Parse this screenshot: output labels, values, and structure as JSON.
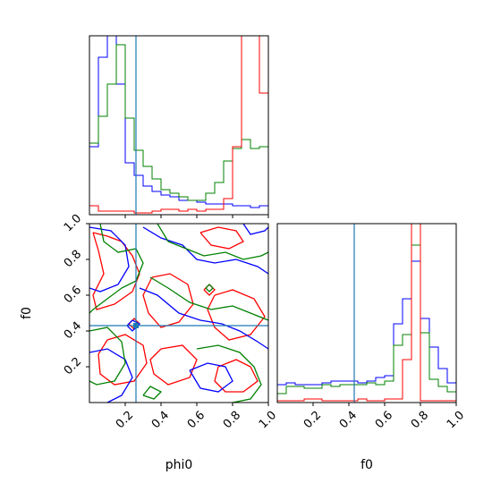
{
  "chart_data": {
    "type": "corner",
    "parameters": [
      "phi0",
      "f0"
    ],
    "truth": {
      "phi0": 0.26,
      "f0": 0.43
    },
    "xlabel_phi0": "phi0",
    "xlabel_f0": "f0",
    "ylabel_f0": "f0",
    "axis_range": [
      0.0,
      1.0
    ],
    "ticks": [
      0.2,
      0.4,
      0.6,
      0.8,
      1.0
    ],
    "tick_labels": [
      "0.2",
      "0.4",
      "0.6",
      "0.8",
      "1.0"
    ],
    "colors": {
      "blue": "#0000ff",
      "green": "#008000",
      "red": "#ff0000",
      "truth": "#1f77b4"
    },
    "hist_bin_width": 0.05,
    "hist_phi0": {
      "ymax": 1.0,
      "series": [
        {
          "color": "blue",
          "values": [
            0.38,
            0.88,
            1.05,
            0.73,
            0.29,
            0.22,
            0.16,
            0.13,
            0.11,
            0.1,
            0.08,
            0.08,
            0.07,
            0.06,
            0.06,
            0.06,
            0.05,
            0.05,
            0.04,
            0.05
          ]
        },
        {
          "color": "green",
          "values": [
            0.4,
            0.55,
            0.73,
            0.95,
            0.54,
            0.36,
            0.27,
            0.2,
            0.14,
            0.12,
            0.1,
            0.08,
            0.08,
            0.12,
            0.18,
            0.3,
            0.37,
            0.42,
            0.37,
            0.38
          ]
        },
        {
          "color": "red",
          "values": [
            0.05,
            0.02,
            0.02,
            0.02,
            0.02,
            0.01,
            0.01,
            0.02,
            0.03,
            0.03,
            0.02,
            0.03,
            0.02,
            0.03,
            0.03,
            0.09,
            0.38,
            1.06,
            1.02,
            0.68
          ]
        }
      ]
    },
    "hist_f0": {
      "ymax": 1.0,
      "series": [
        {
          "color": "blue",
          "values": [
            0.1,
            0.11,
            0.1,
            0.1,
            0.1,
            0.11,
            0.12,
            0.12,
            0.12,
            0.11,
            0.12,
            0.14,
            0.15,
            0.44,
            0.58,
            0.79,
            0.47,
            0.31,
            0.19,
            0.11
          ]
        },
        {
          "color": "green",
          "values": [
            0.05,
            0.09,
            0.09,
            0.08,
            0.08,
            0.1,
            0.09,
            0.1,
            0.1,
            0.1,
            0.11,
            0.1,
            0.12,
            0.32,
            0.38,
            0.88,
            0.39,
            0.13,
            0.09,
            0.06
          ]
        },
        {
          "color": "red",
          "values": [
            0.01,
            0.01,
            0.01,
            0.02,
            0.02,
            0.01,
            0.01,
            0.01,
            0.01,
            0.02,
            0.01,
            0.01,
            0.02,
            0.02,
            0.24,
            1.06,
            0.01,
            0.01,
            0.01,
            0.01
          ]
        }
      ]
    },
    "contours": [
      {
        "color": "red",
        "points": [
          [
            0.02,
            0.95
          ],
          [
            0.1,
            0.93
          ],
          [
            0.18,
            0.9
          ],
          [
            0.24,
            0.82
          ],
          [
            0.28,
            0.72
          ],
          [
            0.24,
            0.62
          ],
          [
            0.14,
            0.55
          ],
          [
            0.04,
            0.52
          ],
          [
            0.02,
            0.6
          ],
          [
            0.08,
            0.72
          ],
          [
            0.05,
            0.85
          ],
          [
            0.02,
            0.95
          ]
        ]
      },
      {
        "color": "red",
        "points": [
          [
            0.35,
            0.7
          ],
          [
            0.45,
            0.72
          ],
          [
            0.55,
            0.66
          ],
          [
            0.58,
            0.55
          ],
          [
            0.5,
            0.45
          ],
          [
            0.4,
            0.42
          ],
          [
            0.33,
            0.5
          ],
          [
            0.3,
            0.6
          ],
          [
            0.35,
            0.7
          ]
        ]
      },
      {
        "color": "red",
        "points": [
          [
            0.62,
            0.95
          ],
          [
            0.72,
            0.98
          ],
          [
            0.82,
            0.96
          ],
          [
            0.86,
            0.9
          ],
          [
            0.78,
            0.86
          ],
          [
            0.68,
            0.88
          ],
          [
            0.62,
            0.95
          ]
        ]
      },
      {
        "color": "red",
        "points": [
          [
            0.7,
            0.6
          ],
          [
            0.8,
            0.63
          ],
          [
            0.92,
            0.58
          ],
          [
            0.98,
            0.48
          ],
          [
            0.9,
            0.38
          ],
          [
            0.78,
            0.35
          ],
          [
            0.7,
            0.42
          ],
          [
            0.66,
            0.52
          ],
          [
            0.7,
            0.6
          ]
        ]
      },
      {
        "color": "red",
        "points": [
          [
            0.1,
            0.35
          ],
          [
            0.2,
            0.38
          ],
          [
            0.3,
            0.32
          ],
          [
            0.32,
            0.22
          ],
          [
            0.25,
            0.12
          ],
          [
            0.14,
            0.1
          ],
          [
            0.06,
            0.16
          ],
          [
            0.05,
            0.27
          ],
          [
            0.1,
            0.35
          ]
        ]
      },
      {
        "color": "red",
        "points": [
          [
            0.4,
            0.3
          ],
          [
            0.52,
            0.32
          ],
          [
            0.6,
            0.24
          ],
          [
            0.56,
            0.14
          ],
          [
            0.44,
            0.1
          ],
          [
            0.36,
            0.16
          ],
          [
            0.34,
            0.24
          ],
          [
            0.4,
            0.3
          ]
        ]
      },
      {
        "color": "red",
        "points": [
          [
            0.72,
            0.2
          ],
          [
            0.82,
            0.24
          ],
          [
            0.9,
            0.2
          ],
          [
            0.94,
            0.12
          ],
          [
            0.86,
            0.06
          ],
          [
            0.76,
            0.06
          ],
          [
            0.7,
            0.12
          ],
          [
            0.72,
            0.2
          ]
        ]
      },
      {
        "color": "red",
        "points": [
          [
            0.22,
            0.44
          ],
          [
            0.25,
            0.47
          ],
          [
            0.28,
            0.44
          ],
          [
            0.25,
            0.41
          ],
          [
            0.22,
            0.44
          ]
        ]
      },
      {
        "color": "red",
        "points": [
          [
            0.64,
            0.63
          ],
          [
            0.67,
            0.66
          ],
          [
            0.7,
            0.63
          ],
          [
            0.67,
            0.6
          ],
          [
            0.64,
            0.63
          ]
        ]
      },
      {
        "color": "blue",
        "points": [
          [
            0.0,
            0.98
          ],
          [
            0.12,
            0.96
          ],
          [
            0.2,
            0.88
          ],
          [
            0.22,
            0.76
          ],
          [
            0.16,
            0.66
          ],
          [
            0.06,
            0.62
          ],
          [
            0.0,
            0.64
          ]
        ]
      },
      {
        "color": "blue",
        "points": [
          [
            0.3,
            0.98
          ],
          [
            0.4,
            0.92
          ],
          [
            0.52,
            0.88
          ],
          [
            0.6,
            0.8
          ],
          [
            0.7,
            0.78
          ],
          [
            0.82,
            0.8
          ],
          [
            0.94,
            0.76
          ],
          [
            1.0,
            0.72
          ]
        ]
      },
      {
        "color": "blue",
        "points": [
          [
            0.28,
            0.64
          ],
          [
            0.38,
            0.6
          ],
          [
            0.5,
            0.5
          ],
          [
            0.62,
            0.46
          ],
          [
            0.74,
            0.44
          ],
          [
            0.84,
            0.4
          ],
          [
            0.94,
            0.34
          ],
          [
            1.0,
            0.3
          ]
        ]
      },
      {
        "color": "blue",
        "points": [
          [
            0.0,
            0.28
          ],
          [
            0.1,
            0.3
          ],
          [
            0.2,
            0.24
          ],
          [
            0.24,
            0.14
          ],
          [
            0.18,
            0.04
          ],
          [
            0.1,
            0.0
          ]
        ]
      },
      {
        "color": "blue",
        "points": [
          [
            0.56,
            0.18
          ],
          [
            0.66,
            0.22
          ],
          [
            0.76,
            0.2
          ],
          [
            0.8,
            0.12
          ],
          [
            0.72,
            0.06
          ],
          [
            0.62,
            0.08
          ],
          [
            0.56,
            0.18
          ]
        ]
      },
      {
        "color": "blue",
        "points": [
          [
            0.86,
            1.0
          ],
          [
            0.9,
            0.94
          ],
          [
            0.98,
            0.96
          ],
          [
            1.0,
            0.98
          ]
        ]
      },
      {
        "color": "blue",
        "points": [
          [
            0.24,
            0.46
          ],
          [
            0.28,
            0.44
          ],
          [
            0.24,
            0.4
          ],
          [
            0.21,
            0.43
          ],
          [
            0.24,
            0.46
          ]
        ]
      },
      {
        "color": "green",
        "points": [
          [
            0.06,
            1.0
          ],
          [
            0.08,
            0.9
          ],
          [
            0.16,
            0.84
          ],
          [
            0.26,
            0.86
          ],
          [
            0.3,
            0.78
          ],
          [
            0.26,
            0.68
          ],
          [
            0.18,
            0.64
          ],
          [
            0.1,
            0.58
          ],
          [
            0.02,
            0.52
          ],
          [
            0.0,
            0.5
          ]
        ]
      },
      {
        "color": "green",
        "points": [
          [
            0.38,
            1.0
          ],
          [
            0.44,
            0.9
          ],
          [
            0.54,
            0.86
          ],
          [
            0.64,
            0.82
          ],
          [
            0.76,
            0.84
          ],
          [
            0.86,
            0.8
          ],
          [
            0.96,
            0.82
          ],
          [
            1.0,
            0.84
          ]
        ]
      },
      {
        "color": "green",
        "points": [
          [
            0.34,
            0.7
          ],
          [
            0.44,
            0.64
          ],
          [
            0.56,
            0.56
          ],
          [
            0.68,
            0.52
          ],
          [
            0.8,
            0.54
          ],
          [
            0.9,
            0.5
          ],
          [
            1.0,
            0.46
          ]
        ]
      },
      {
        "color": "green",
        "points": [
          [
            0.0,
            0.4
          ],
          [
            0.1,
            0.42
          ],
          [
            0.18,
            0.34
          ],
          [
            0.2,
            0.22
          ],
          [
            0.14,
            0.12
          ],
          [
            0.04,
            0.1
          ],
          [
            0.0,
            0.12
          ]
        ]
      },
      {
        "color": "green",
        "points": [
          [
            0.6,
            0.3
          ],
          [
            0.72,
            0.32
          ],
          [
            0.84,
            0.28
          ],
          [
            0.92,
            0.2
          ],
          [
            0.96,
            0.1
          ],
          [
            0.9,
            0.02
          ],
          [
            0.8,
            0.0
          ]
        ]
      },
      {
        "color": "green",
        "points": [
          [
            0.3,
            0.04
          ],
          [
            0.36,
            0.02
          ],
          [
            0.4,
            0.06
          ],
          [
            0.34,
            0.09
          ],
          [
            0.3,
            0.04
          ]
        ]
      },
      {
        "color": "green",
        "points": [
          [
            0.65,
            0.64
          ],
          [
            0.67,
            0.66
          ],
          [
            0.69,
            0.64
          ],
          [
            0.67,
            0.62
          ],
          [
            0.65,
            0.64
          ]
        ]
      }
    ]
  }
}
